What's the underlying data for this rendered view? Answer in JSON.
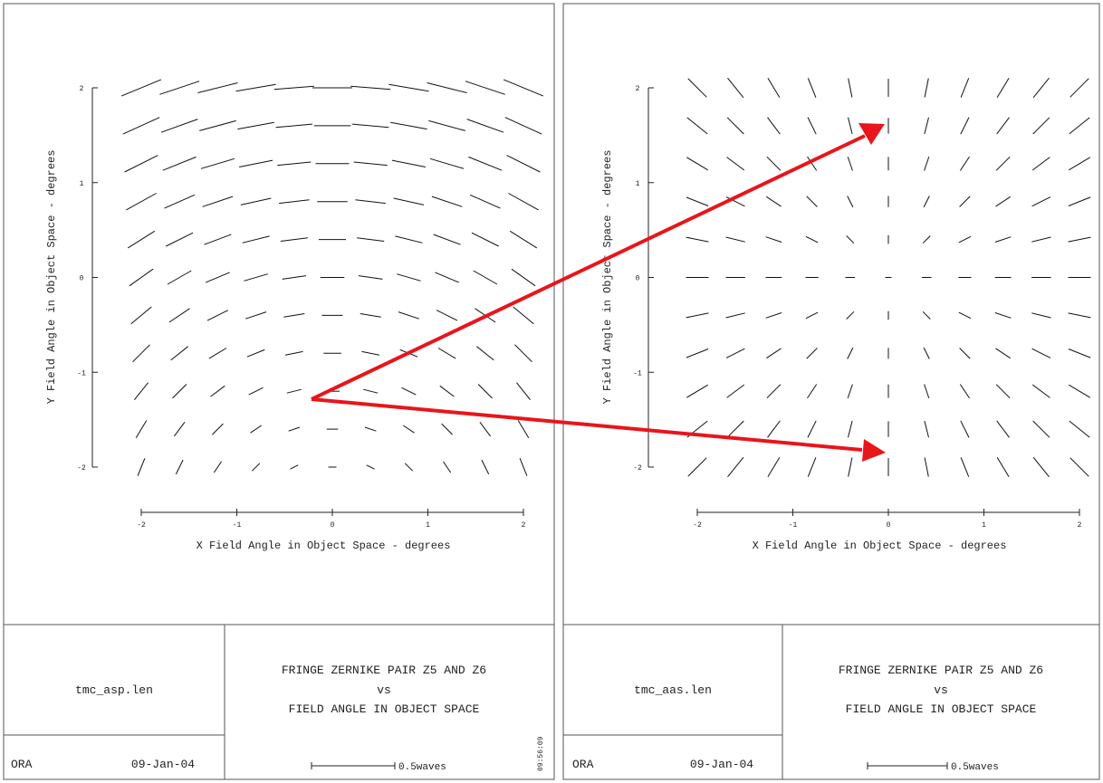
{
  "panels": [
    {
      "filename": "tmc_asp.len",
      "org": "ORA",
      "date": "09-Jan-04",
      "title_lines": [
        "FRINGE ZERNIKE PAIR Z5 AND Z6",
        "vs",
        "FIELD ANGLE IN OBJECT SPACE"
      ],
      "scale_label": "0.5waves",
      "time": "09:56:09"
    },
    {
      "filename": "tmc_aas.len",
      "org": "ORA",
      "date": "09-Jan-04",
      "title_lines": [
        "FRINGE ZERNIKE PAIR Z5 AND Z6",
        "vs",
        "FIELD ANGLE IN OBJECT SPACE"
      ],
      "scale_label": "0.5waves",
      "time": ""
    }
  ],
  "chart_data": [
    {
      "type": "vector-field",
      "xlabel": "X Field Angle in Object Space - degrees",
      "ylabel": "Y Field Angle in Object Space - degrees",
      "xlim": [
        -2,
        2
      ],
      "ylim": [
        -2,
        2
      ],
      "x_ticks": [
        "-2",
        "-1",
        "0",
        "1",
        "2"
      ],
      "y_ticks": [
        "2",
        "1",
        "0",
        "-1",
        "-2"
      ],
      "grid_x": [
        -2.0,
        -1.6,
        -1.2,
        -0.8,
        -0.4,
        0.0,
        0.4,
        0.8,
        1.2,
        1.6,
        2.0
      ],
      "grid_y": [
        2.0,
        1.6,
        1.2,
        0.8,
        0.4,
        0.0,
        -0.4,
        -0.8,
        -1.2,
        -1.6,
        -2.0
      ],
      "model": "astigmatism_shifted"
    },
    {
      "type": "vector-field",
      "xlabel": "X Field Angle in Object Space - degrees",
      "ylabel": "Y Field Angle in Object Space - degrees",
      "xlim": [
        -2,
        2
      ],
      "ylim": [
        -2,
        2
      ],
      "x_ticks": [
        "-2",
        "-1",
        "0",
        "1",
        "2"
      ],
      "y_ticks": [
        "2",
        "1",
        "0",
        "-1",
        "-2"
      ],
      "grid_x": [
        -2.0,
        -1.6,
        -1.2,
        -0.8,
        -0.4,
        0.0,
        0.4,
        0.8,
        1.2,
        1.6,
        2.0
      ],
      "grid_y": [
        2.0,
        1.6,
        1.2,
        0.8,
        0.4,
        0.0,
        -0.4,
        -0.8,
        -1.2,
        -1.6,
        -2.0
      ],
      "model": "astigmatism_saddle"
    }
  ],
  "annotation": {
    "color": "#e8151b",
    "arrows": [
      {
        "from": "left-panel-field",
        "to": "right-panel-top-center"
      },
      {
        "from": "left-panel-field",
        "to": "right-panel-bottom-center"
      }
    ]
  }
}
